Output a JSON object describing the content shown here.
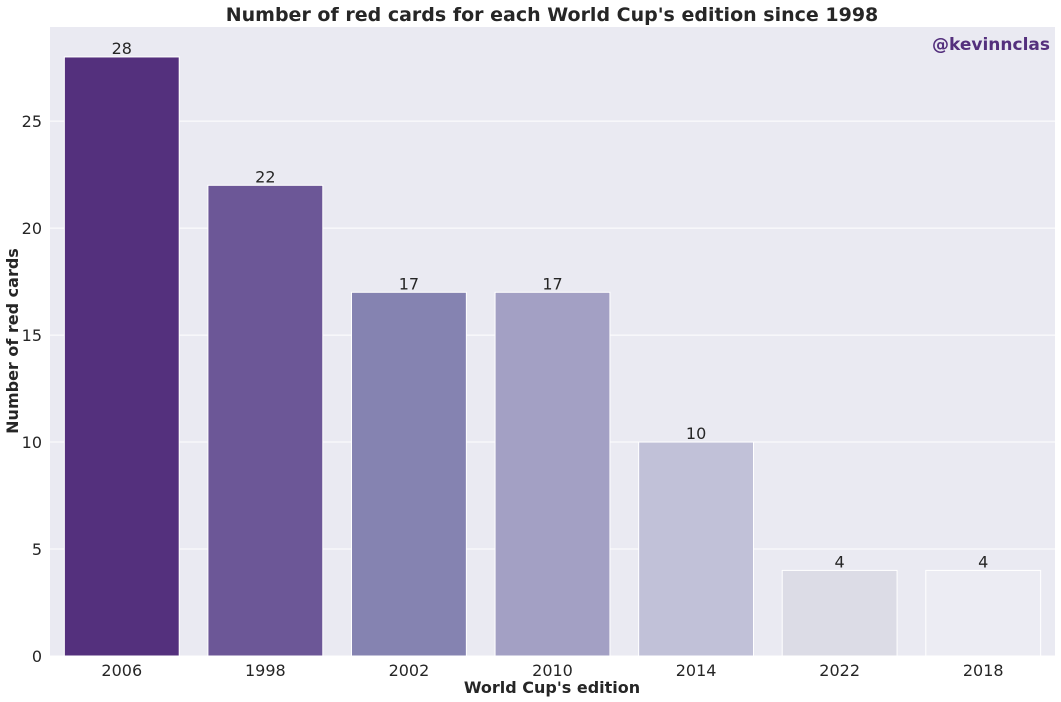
{
  "chart_data": {
    "type": "bar",
    "title": "Number of red cards for each World Cup's edition since 1998",
    "xlabel": "World Cup's edition",
    "ylabel": "Number of red cards",
    "categories": [
      "2006",
      "1998",
      "2002",
      "2010",
      "2014",
      "2022",
      "2018"
    ],
    "values": [
      28,
      22,
      17,
      17,
      10,
      4,
      4
    ],
    "ylim": [
      0,
      29.4
    ],
    "yticks": [
      "0",
      "5",
      "10",
      "15",
      "20",
      "25"
    ],
    "grid": true,
    "legend": "none",
    "bar_colors": [
      "#54307d",
      "#6c5797",
      "#8583b1",
      "#a3a0c4",
      "#c1c1d8",
      "#dcdce6",
      "#ececf3"
    ],
    "background_color": "#eaeaf2"
  },
  "watermark": {
    "text": "@kevinnclas",
    "color": "#54307d"
  }
}
